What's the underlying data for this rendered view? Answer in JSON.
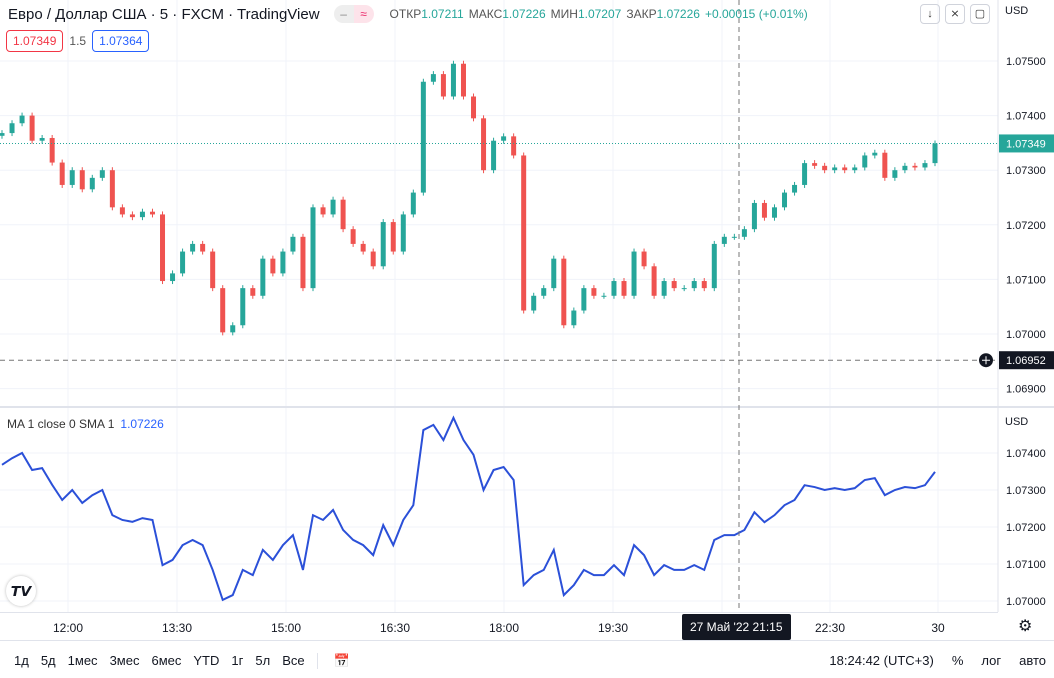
{
  "header": {
    "title": "Евро / Доллар США · 5 · FXCM · TradingView",
    "pill_left": "–",
    "pill_right": "≈",
    "open_label": "ОТКР",
    "open": "1.07211",
    "high_label": "МАКС",
    "high": "1.07226",
    "low_label": "МИН",
    "low": "1.07207",
    "close_label": "ЗАКР",
    "close": "1.07226",
    "change": "+0.00015 (+0.01%)",
    "bid": "1.07349",
    "spread": "1.5",
    "ask": "1.07364"
  },
  "buttons": {
    "down": "↓",
    "collapse": "⨯",
    "fullscreen": "▢"
  },
  "currency": "USD",
  "indicator": {
    "label": "MA 1 close 0 SMA 1",
    "value": "1.07226"
  },
  "price_labels": {
    "last": "1.07349",
    "crosshair": "1.06952",
    "crosshair_time": "27 Май '22   21:15"
  },
  "colors": {
    "up": "#26a69a",
    "down": "#ef5350",
    "ma": "#2b50d8",
    "last": "#26a69a"
  },
  "chart_data": [
    {
      "type": "candlestick",
      "yticks": [
        "1.07500",
        "1.07400",
        "1.07300",
        "1.07200",
        "1.07100",
        "1.07000",
        "1.06900"
      ],
      "ylim": [
        1.0686,
        1.0761
      ],
      "close": [
        1.07368,
        1.07386,
        1.074,
        1.07354,
        1.07359,
        1.07314,
        1.07273,
        1.073,
        1.07265,
        1.07286,
        1.073,
        1.07232,
        1.07219,
        1.07214,
        1.07224,
        1.07219,
        1.07097,
        1.07111,
        1.07151,
        1.07165,
        1.07151,
        1.07084,
        1.07003,
        1.07016,
        1.07084,
        1.0707,
        1.07138,
        1.07111,
        1.07151,
        1.07178,
        1.07084,
        1.07232,
        1.07219,
        1.07246,
        1.07192,
        1.07165,
        1.07151,
        1.07124,
        1.07205,
        1.07151,
        1.07219,
        1.07259,
        1.07462,
        1.07476,
        1.07435,
        1.07495,
        1.07435,
        1.07395,
        1.073,
        1.07354,
        1.07362,
        1.07327,
        1.07043,
        1.0707,
        1.07084,
        1.07138,
        1.07016,
        1.07043,
        1.07084,
        1.0707,
        1.0707,
        1.07097,
        1.0707,
        1.07151,
        1.07124,
        1.0707,
        1.07097,
        1.07084,
        1.07084,
        1.07097,
        1.07084,
        1.07165,
        1.07178,
        1.07178,
        1.07192,
        1.0724,
        1.07213,
        1.07232,
        1.07259,
        1.07273,
        1.07313,
        1.07308,
        1.073,
        1.07305,
        1.073,
        1.07305,
        1.07327,
        1.07332,
        1.07286,
        1.073,
        1.07308,
        1.07305,
        1.07313,
        1.07349
      ]
    },
    {
      "type": "line",
      "name": "MA 1 close 0 SMA 1",
      "yticks": [
        "1.07400",
        "1.07300",
        "1.07200",
        "1.07100",
        "1.07000"
      ],
      "ylim": [
        1.06995,
        1.0751
      ]
    }
  ],
  "xaxis": {
    "ticks": [
      "12:00",
      "13:30",
      "15:00",
      "16:30",
      "18:00",
      "19:30",
      "22:30",
      "30"
    ]
  },
  "toolbar": {
    "ranges": [
      "1д",
      "5д",
      "1мес",
      "3мес",
      "6мес",
      "YTD",
      "1г",
      "5л",
      "Все"
    ],
    "time": "18:24:42 (UTC+3)",
    "percent": "%",
    "log": "лог",
    "auto": "авто"
  }
}
